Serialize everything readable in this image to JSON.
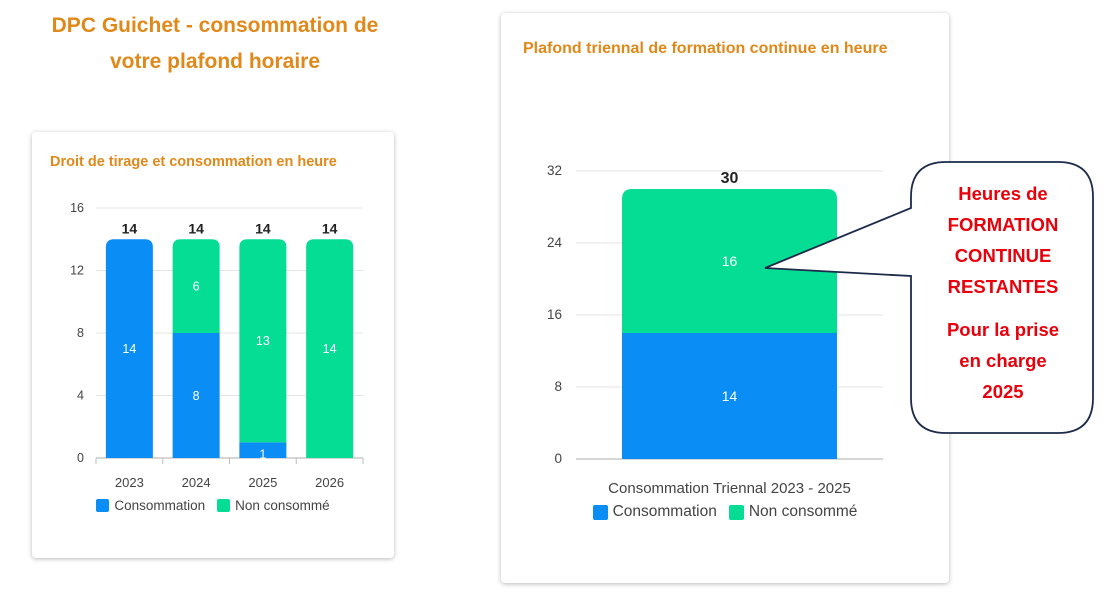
{
  "page": {
    "title_line1": "DPC Guichet - consommation de",
    "title_line2": "votre plafond horaire"
  },
  "colors": {
    "consommation": "#0a8df5",
    "non_consomme": "#06dd94",
    "title": "#e0891a",
    "callout_text": "#e8000b",
    "callout_border": "#1d2b4b"
  },
  "callout": {
    "line1": "Heures de",
    "line2": "FORMATION",
    "line3": "CONTINUE",
    "line4": "RESTANTES",
    "line5": "Pour la prise",
    "line6": "en charge",
    "line7": "2025"
  },
  "chart_data": [
    {
      "type": "bar",
      "stacked": true,
      "title": "Droit de tirage et consommation en heure",
      "categories": [
        "2023",
        "2024",
        "2025",
        "2026"
      ],
      "series": [
        {
          "name": "Consommation",
          "values": [
            14,
            8,
            1,
            0
          ]
        },
        {
          "name": "Non consommé",
          "values": [
            0,
            6,
            13,
            14
          ]
        }
      ],
      "totals": [
        14,
        14,
        14,
        14
      ],
      "ylim": [
        0,
        16
      ],
      "yticks": [
        0,
        4,
        8,
        12,
        16
      ],
      "grid": true,
      "legend": "bottom"
    },
    {
      "type": "bar",
      "stacked": true,
      "title": "Plafond triennal de formation continue en heure",
      "categories": [
        "Consommation Triennal 2023 - 2025"
      ],
      "series": [
        {
          "name": "Consommation",
          "values": [
            14
          ]
        },
        {
          "name": "Non consommé",
          "values": [
            16
          ]
        }
      ],
      "totals": [
        30
      ],
      "ylim": [
        0,
        32
      ],
      "yticks": [
        0,
        8,
        16,
        24,
        32
      ],
      "grid": true,
      "legend": "bottom"
    }
  ]
}
